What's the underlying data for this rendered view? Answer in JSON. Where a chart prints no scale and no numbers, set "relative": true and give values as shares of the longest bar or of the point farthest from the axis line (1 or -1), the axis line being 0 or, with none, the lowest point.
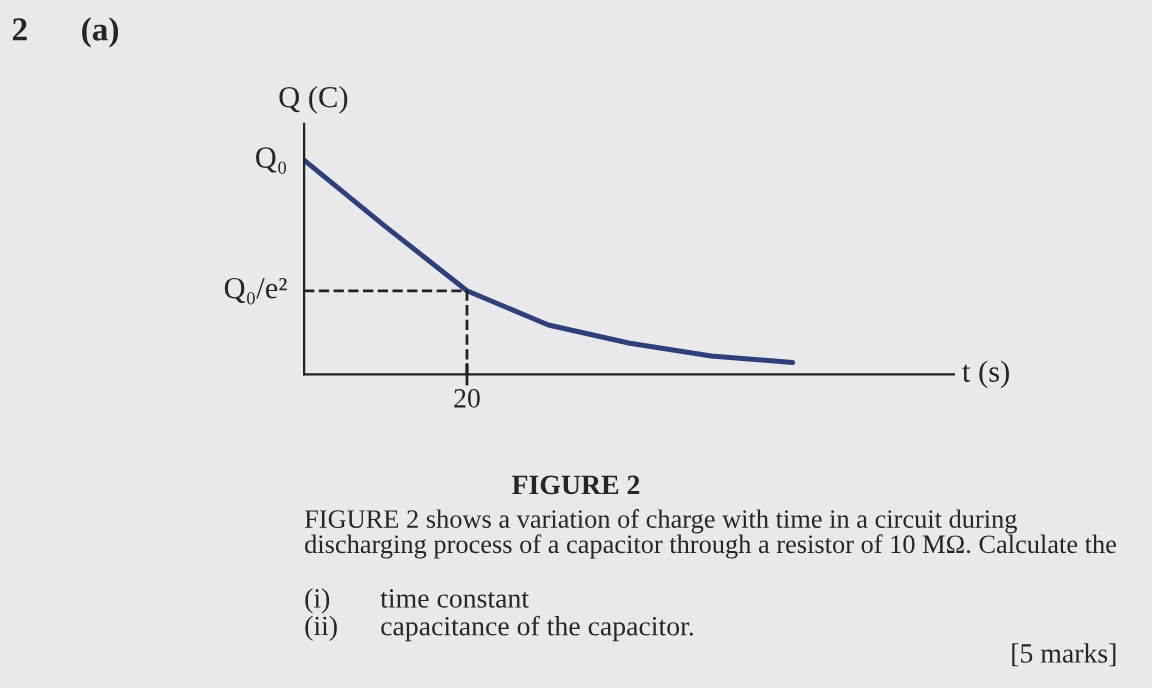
{
  "chart_data": {
    "type": "line",
    "relative": true,
    "xlabel": "t (s)",
    "ylabel": "Q (C)",
    "categories": [
      null,
      null,
      null,
      null,
      null,
      null,
      null
    ],
    "series": [
      {
        "color": "#2f3f7a",
        "values": [
          1.0,
          0.69,
          0.39,
          0.23,
          0.145,
          0.085,
          0.055
        ]
      }
    ],
    "ref_lines": [
      {
        "axis": "y",
        "value": 0.39,
        "label": "Q₀/e²",
        "line_style": "dashed",
        "color": "#222222"
      }
    ],
    "annotations": [
      "Q₀",
      "20",
      "2",
      "(a)",
      "FIGURE 2",
      "FIGURE 2 shows a variation of charge with time in a circuit during\ndischarging process of a capacitor through a resistor of 10 MΩ. Calculate the",
      "(i)",
      "time constant",
      "(ii)",
      "capacitance of the capacitor.",
      "[5 marks]"
    ],
    "legend": false,
    "marker": "none",
    "line_style": "solid"
  }
}
